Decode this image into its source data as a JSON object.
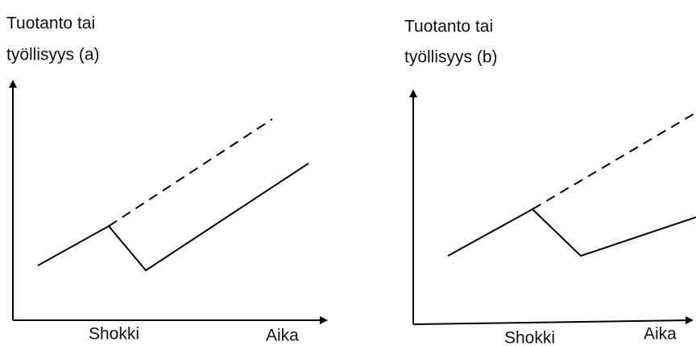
{
  "panels": [
    {
      "y_label": [
        "Tuotanto tai",
        "työllisyys (a)"
      ],
      "event_label": "Shokki",
      "x_label": "Aika"
    },
    {
      "y_label": [
        "Tuotanto tai",
        "työllisyys (b)"
      ],
      "event_label": "Shokki",
      "x_label": "Aika"
    }
  ]
}
